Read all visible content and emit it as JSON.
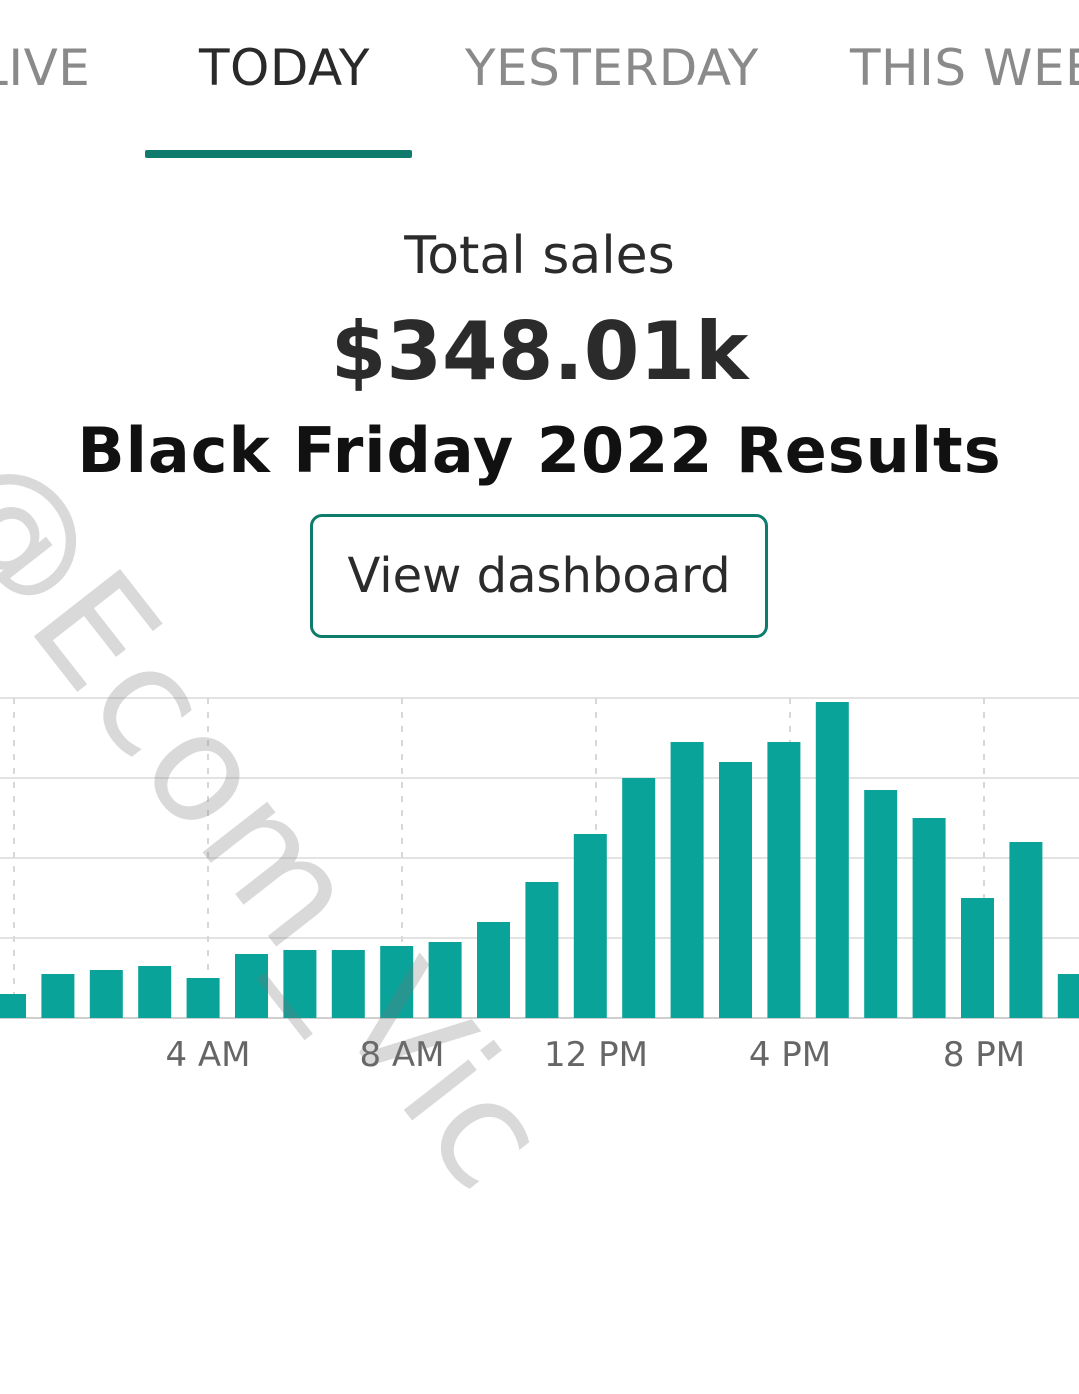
{
  "tabs": [
    {
      "label": "LIVE",
      "active": false
    },
    {
      "label": "TODAY",
      "active": true
    },
    {
      "label": "YESTERDAY",
      "active": false
    },
    {
      "label": "THIS WEEK",
      "active": false
    }
  ],
  "summary": {
    "label": "Total sales",
    "value": "$348.01k"
  },
  "headline": "Black Friday 2022 Results",
  "view_button": "View dashboard",
  "watermark": "@Ecom_Vic",
  "colors": {
    "accent": "#0f7b6c",
    "bar": "#0aa39a"
  },
  "chart_data": {
    "type": "bar",
    "x_ticks": [
      "4 AM",
      "8 AM",
      "12 PM",
      "4 PM",
      "8 PM"
    ],
    "values": [
      6,
      11,
      12,
      13,
      10,
      16,
      17,
      17,
      18,
      19,
      24,
      34,
      46,
      60,
      69,
      64,
      69,
      79,
      57,
      50,
      30,
      44,
      11
    ],
    "ylim": [
      0,
      80
    ],
    "grid": true
  }
}
